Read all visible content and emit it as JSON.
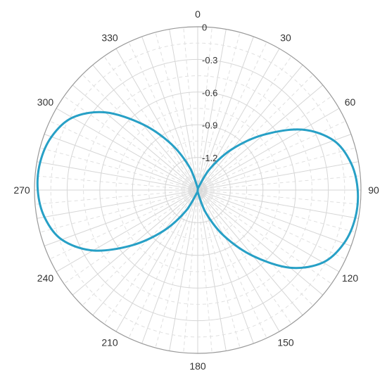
{
  "chart_data": {
    "type": "line",
    "subtype": "polar",
    "title": "",
    "angular_axis": {
      "unit": "degrees",
      "direction": "clockwise",
      "zero_at": "top",
      "tick_labels": [
        "0",
        "30",
        "60",
        "90",
        "120",
        "150",
        "180",
        "210",
        "240",
        "270",
        "300",
        "330"
      ],
      "minor_spoke_step": 5
    },
    "radial_axis": {
      "range": [
        -1.5,
        0
      ],
      "outer_value": 0,
      "tick_labels": [
        "0",
        "-0.3",
        "-0.6",
        "-0.9",
        "-1.2"
      ],
      "tick_values": [
        0,
        -0.3,
        -0.6,
        -0.9,
        -1.2
      ],
      "extra_circles": [
        -0.15,
        -0.45,
        -0.75,
        -1.05,
        -1.35
      ]
    },
    "grid": true,
    "series": [
      {
        "color": "#27a0c6",
        "angles": [
          0,
          10,
          20,
          30,
          40,
          50,
          60,
          70,
          80,
          90,
          100,
          110,
          120,
          130,
          140,
          150,
          160,
          170,
          180,
          190,
          200,
          210,
          220,
          230,
          240,
          250,
          260,
          270,
          280,
          290,
          300,
          310,
          320,
          330,
          340,
          350,
          360
        ],
        "values": [
          -1.5,
          -1.497,
          -1.46,
          -1.27,
          -1.01,
          -0.71,
          -0.39,
          -0.17,
          -0.07,
          -0.03,
          -0.03,
          -0.07,
          -0.17,
          -0.39,
          -0.71,
          -1.01,
          -1.27,
          -1.46,
          -1.5,
          -1.497,
          -1.46,
          -1.27,
          -1.01,
          -0.71,
          -0.39,
          -0.17,
          -0.07,
          -0.03,
          -0.03,
          -0.07,
          -0.17,
          -0.39,
          -0.71,
          -1.01,
          -1.27,
          -1.46,
          -1.5
        ]
      }
    ]
  },
  "colors": {
    "grid": "#d6d6d6",
    "grid_dashed": "#e0e0e0",
    "outer_circle": "#999999",
    "series": "#27a0c6"
  }
}
